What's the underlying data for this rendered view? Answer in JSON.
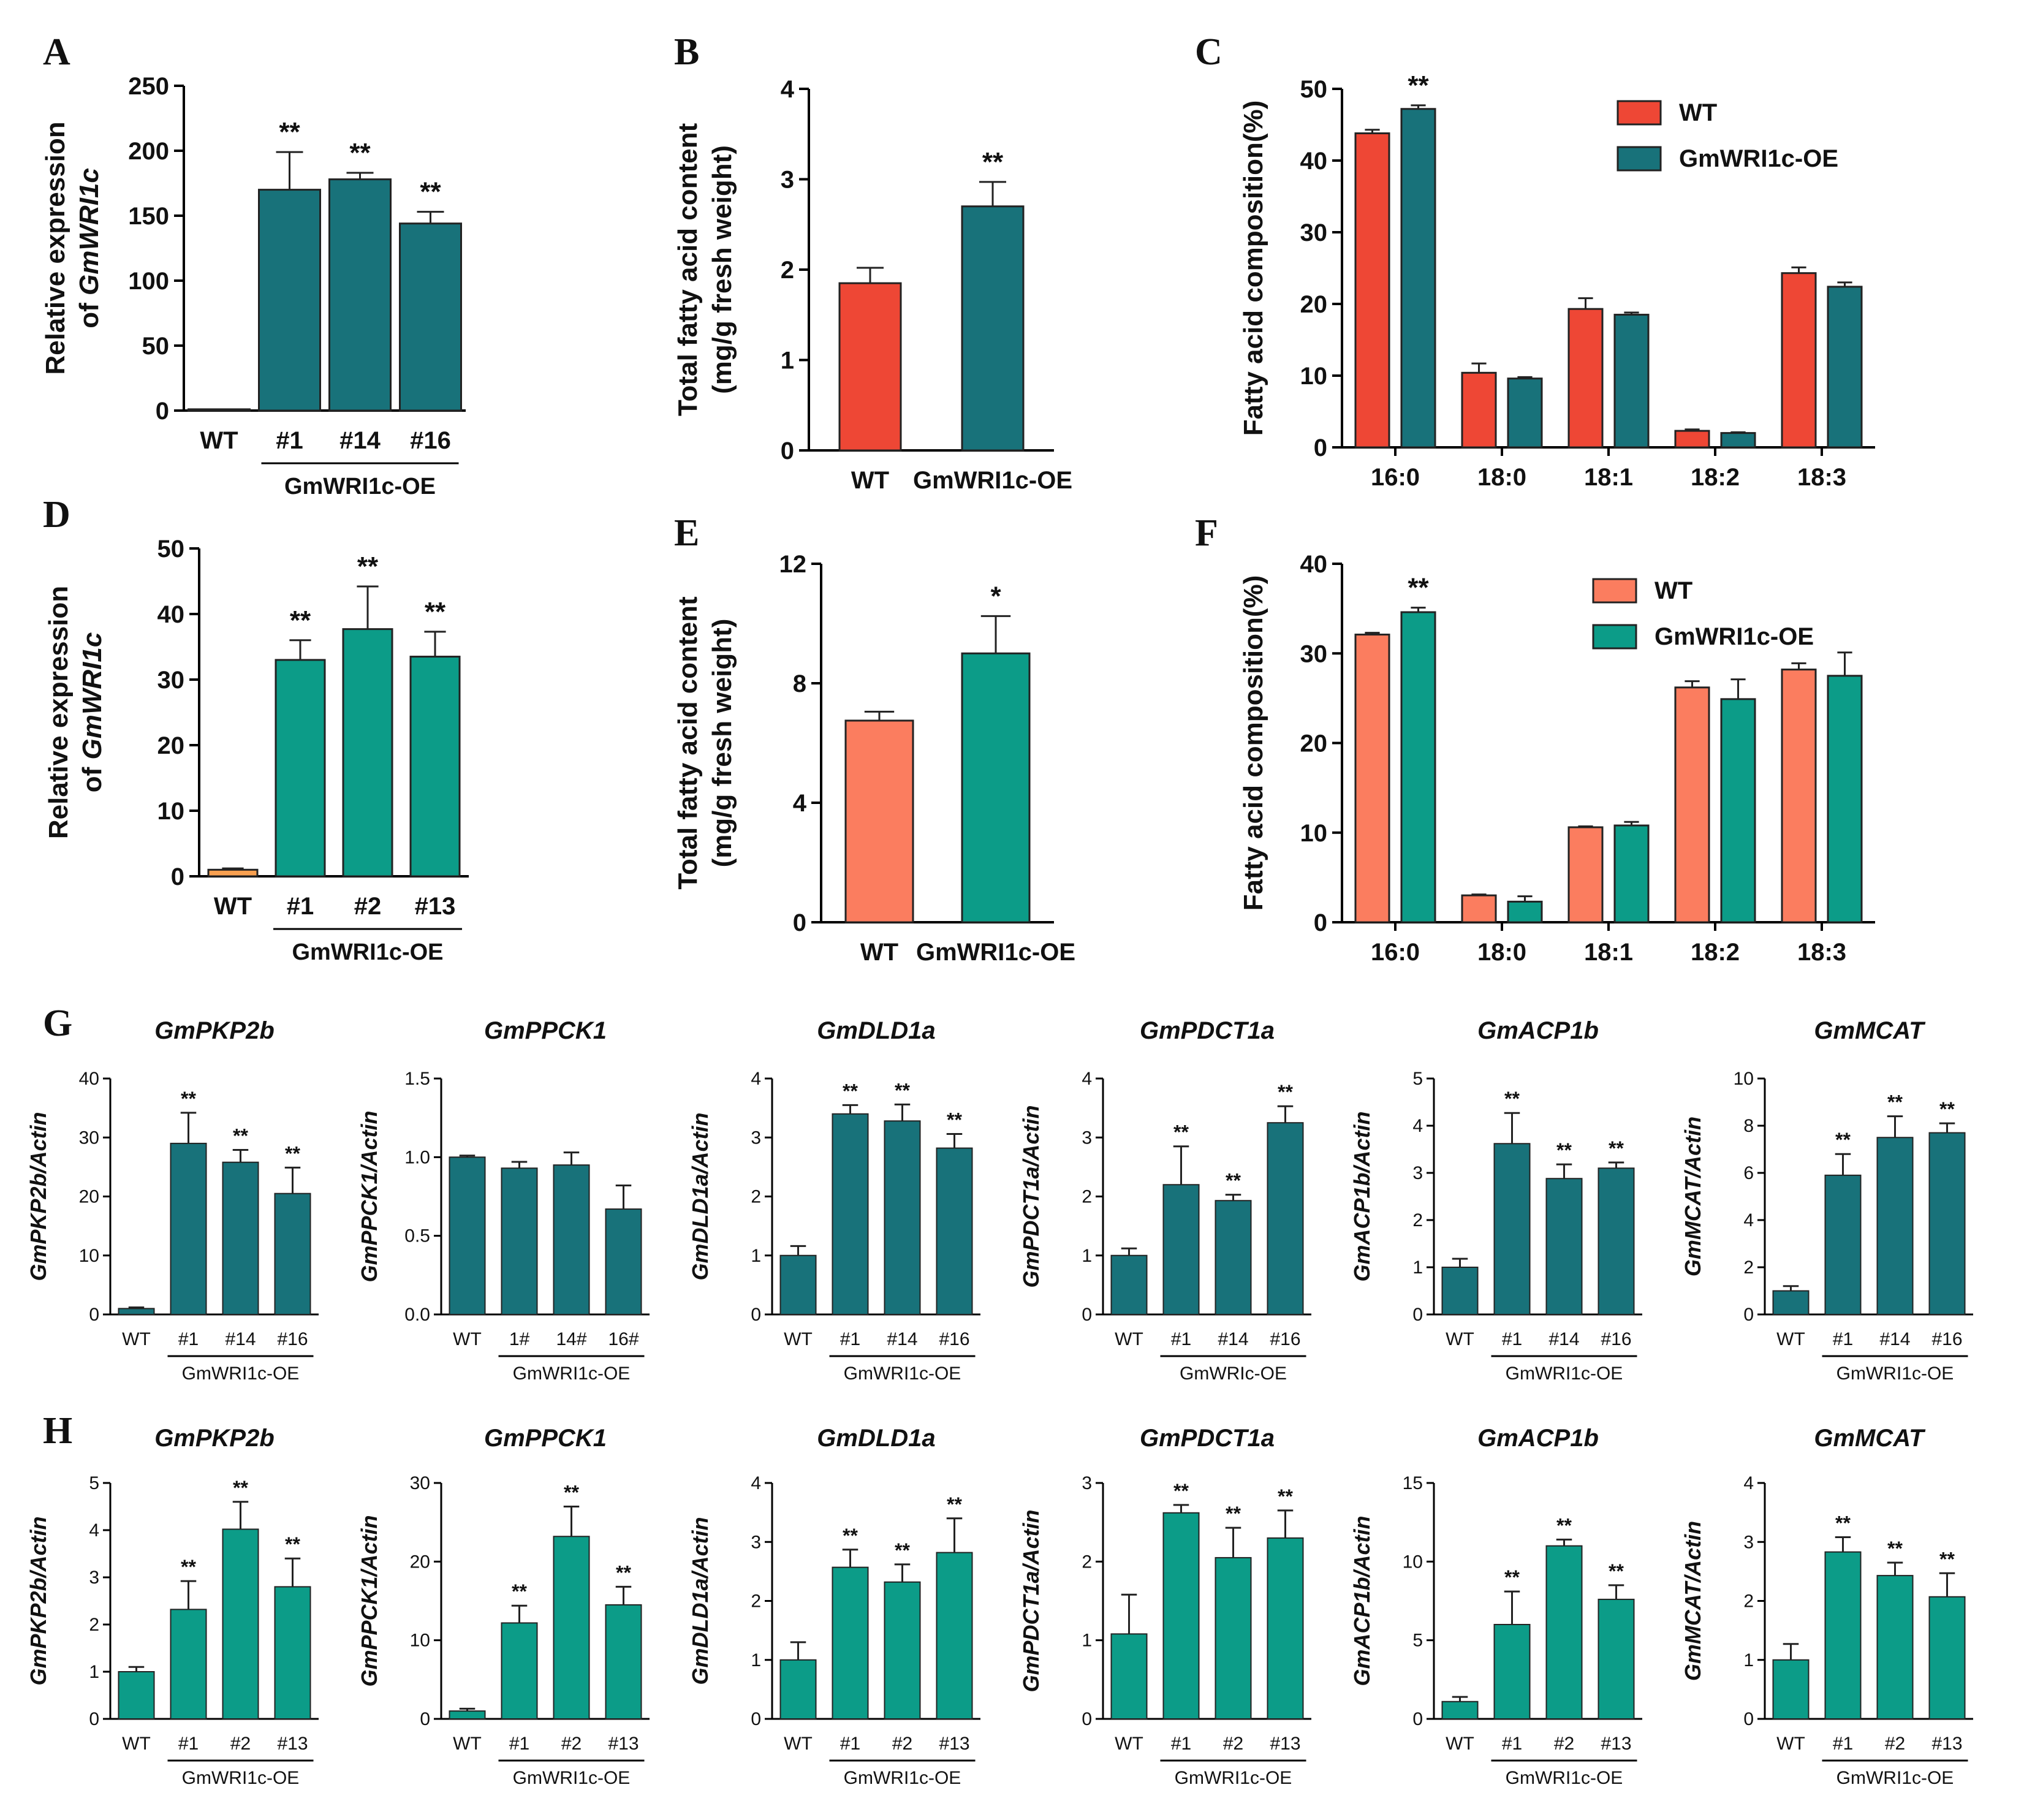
{
  "colors": {
    "red": "#ee4735",
    "dark_teal": "#18727a",
    "salmon": "#fb7d5f",
    "green_teal": "#0c9c88",
    "orange_wt": "#f8a050",
    "axis": "#000000"
  },
  "chart_data": [
    {
      "id": "A",
      "type": "bar",
      "panel": "A",
      "ylabel": [
        "Relative expression",
        "of ",
        "GmWRI1c"
      ],
      "ylim": [
        0,
        250
      ],
      "yticks": [
        0,
        50,
        100,
        150,
        200,
        250
      ],
      "categories": [
        "WT",
        "#1",
        "#14",
        "#16"
      ],
      "values": [
        1,
        170,
        178,
        144
      ],
      "errors": [
        0,
        29,
        5,
        9
      ],
      "sig": [
        "",
        "**",
        "**",
        "**"
      ],
      "colors": [
        "#18727a",
        "#18727a",
        "#18727a",
        "#18727a"
      ],
      "group_label": "GmWRI1c-OE"
    },
    {
      "id": "B",
      "type": "bar",
      "panel": "B",
      "ylabel": [
        "Total fatty acid content",
        "(mg/g fresh weight)"
      ],
      "ylim": [
        0,
        4
      ],
      "yticks": [
        0,
        1,
        2,
        3,
        4
      ],
      "categories": [
        "WT",
        "GmWRI1c-OE"
      ],
      "values": [
        1.85,
        2.7
      ],
      "errors": [
        0.17,
        0.27
      ],
      "sig": [
        "",
        "**"
      ],
      "colors": [
        "#ee4735",
        "#18727a"
      ]
    },
    {
      "id": "C",
      "type": "bar",
      "panel": "C",
      "ylabel": [
        "Fatty acid composition(%)"
      ],
      "ylim": [
        0,
        50
      ],
      "yticks": [
        0,
        10,
        20,
        30,
        40,
        50
      ],
      "categories": [
        "16:0",
        "18:0",
        "18:1",
        "18:2",
        "18:3"
      ],
      "series": [
        {
          "name": "WT",
          "color": "#ee4735",
          "values": [
            43.8,
            10.4,
            19.3,
            2.3,
            24.3
          ],
          "errors": [
            0.5,
            1.3,
            1.5,
            0.2,
            0.8
          ]
        },
        {
          "name": "GmWRI1c-OE",
          "color": "#18727a",
          "values": [
            47.2,
            9.6,
            18.5,
            2.0,
            22.4
          ],
          "errors": [
            0.5,
            0.2,
            0.3,
            0.1,
            0.6
          ]
        }
      ],
      "sig": [
        "**",
        "",
        "",
        "",
        ""
      ],
      "legend": "top-right"
    },
    {
      "id": "D",
      "type": "bar",
      "panel": "D",
      "ylabel": [
        "Relative expression",
        "of ",
        "GmWRI1c"
      ],
      "ylim": [
        0,
        50
      ],
      "yticks": [
        0,
        10,
        20,
        30,
        40,
        50
      ],
      "categories": [
        "WT",
        "#1",
        "#2",
        "#13"
      ],
      "values": [
        1,
        33,
        37.7,
        33.5
      ],
      "errors": [
        0.2,
        3,
        6.5,
        3.8
      ],
      "sig": [
        "",
        "**",
        "**",
        "**"
      ],
      "colors": [
        "#f8a050",
        "#0c9c88",
        "#0c9c88",
        "#0c9c88"
      ],
      "group_label": "GmWRI1c-OE"
    },
    {
      "id": "E",
      "type": "bar",
      "panel": "E",
      "ylabel": [
        "Total fatty acid content",
        "(mg/g fresh weight)"
      ],
      "ylim": [
        0,
        12
      ],
      "yticks": [
        0,
        4,
        8,
        12
      ],
      "categories": [
        "WT",
        "GmWRI1c-OE"
      ],
      "values": [
        6.75,
        9.0
      ],
      "errors": [
        0.3,
        1.25
      ],
      "sig": [
        "",
        "*"
      ],
      "colors": [
        "#fb7d5f",
        "#0c9c88"
      ]
    },
    {
      "id": "F",
      "type": "bar",
      "panel": "F",
      "ylabel": [
        "Fatty acid composition(%)"
      ],
      "ylim": [
        0,
        40
      ],
      "yticks": [
        0,
        10,
        20,
        30,
        40
      ],
      "categories": [
        "16:0",
        "18:0",
        "18:1",
        "18:2",
        "18:3"
      ],
      "series": [
        {
          "name": "WT",
          "color": "#fb7d5f",
          "values": [
            32.1,
            3.0,
            10.6,
            26.2,
            28.2
          ],
          "errors": [
            0.2,
            0.1,
            0.1,
            0.7,
            0.7
          ]
        },
        {
          "name": "GmWRI1c-OE",
          "color": "#0c9c88",
          "values": [
            34.6,
            2.3,
            10.8,
            24.9,
            27.5
          ],
          "errors": [
            0.5,
            0.6,
            0.4,
            2.2,
            2.6
          ]
        }
      ],
      "sig": [
        "**",
        "",
        "",
        "",
        ""
      ],
      "legend": "top-right"
    },
    {
      "id": "G1",
      "type": "bar",
      "panel": "G",
      "title": "GmPKP2b",
      "ylabel": [
        "GmPKP2b",
        "/Actin"
      ],
      "ylim": [
        0,
        40
      ],
      "yticks": [
        0,
        10,
        20,
        30,
        40
      ],
      "categories": [
        "WT",
        "#1",
        "#14",
        "#16"
      ],
      "values": [
        1,
        29,
        25.8,
        20.5
      ],
      "errors": [
        0.2,
        5.2,
        2.1,
        4.4
      ],
      "sig": [
        "",
        "**",
        "**",
        "**"
      ],
      "colors": [
        "#18727a",
        "#18727a",
        "#18727a",
        "#18727a"
      ],
      "group_label": "GmWRI1c-OE"
    },
    {
      "id": "G2",
      "type": "bar",
      "title": "GmPPCK1",
      "ylabel": [
        "GmPPCK1",
        "/Actin"
      ],
      "ylim": [
        0,
        1.5
      ],
      "yticks": [
        "0.0",
        "0.5",
        "1.0",
        "1.5"
      ],
      "categories": [
        "WT",
        "1#",
        "14#",
        "16#"
      ],
      "values": [
        1.0,
        0.93,
        0.95,
        0.67
      ],
      "errors": [
        0.01,
        0.04,
        0.08,
        0.15
      ],
      "sig": [
        "",
        "",
        "",
        ""
      ],
      "colors": [
        "#18727a",
        "#18727a",
        "#18727a",
        "#18727a"
      ],
      "group_label": "GmWRI1c-OE"
    },
    {
      "id": "G3",
      "type": "bar",
      "title": "GmDLD1a",
      "ylabel": [
        "GmDLD1a",
        "/Actin"
      ],
      "ylim": [
        0,
        4
      ],
      "yticks": [
        0,
        1,
        2,
        3,
        4
      ],
      "categories": [
        "WT",
        "#1",
        "#14",
        "#16"
      ],
      "values": [
        1.0,
        3.4,
        3.28,
        2.82
      ],
      "errors": [
        0.16,
        0.15,
        0.28,
        0.24
      ],
      "sig": [
        "",
        "**",
        "**",
        "**"
      ],
      "colors": [
        "#18727a",
        "#18727a",
        "#18727a",
        "#18727a"
      ],
      "group_label": "GmWRI1c-OE"
    },
    {
      "id": "G4",
      "type": "bar",
      "title": "GmPDCT1a",
      "ylabel": [
        "GmPDCT1a",
        "/Actin"
      ],
      "ylim": [
        0,
        4
      ],
      "yticks": [
        0,
        1,
        2,
        3,
        4
      ],
      "categories": [
        "WT",
        "#1",
        "#14",
        "#16"
      ],
      "values": [
        1.0,
        2.2,
        1.93,
        3.25
      ],
      "errors": [
        0.12,
        0.65,
        0.1,
        0.28
      ],
      "sig": [
        "",
        "**",
        "**",
        "**"
      ],
      "colors": [
        "#18727a",
        "#18727a",
        "#18727a",
        "#18727a"
      ],
      "group_label": "GmWRIc-OE"
    },
    {
      "id": "G5",
      "type": "bar",
      "title": "GmACP1b",
      "ylabel": [
        "GmACP1b",
        "/Actin"
      ],
      "ylim": [
        0,
        5
      ],
      "yticks": [
        0,
        1,
        2,
        3,
        4,
        5
      ],
      "categories": [
        "WT",
        "#1",
        "#14",
        "#16"
      ],
      "values": [
        1.0,
        3.62,
        2.88,
        3.1
      ],
      "errors": [
        0.18,
        0.65,
        0.3,
        0.12
      ],
      "sig": [
        "",
        "**",
        "**",
        "**"
      ],
      "colors": [
        "#18727a",
        "#18727a",
        "#18727a",
        "#18727a"
      ],
      "group_label": "GmWRI1c-OE"
    },
    {
      "id": "G6",
      "type": "bar",
      "title": "GmMCAT",
      "ylabel": [
        "GmMCAT",
        "/Actin"
      ],
      "ylim": [
        0,
        10
      ],
      "yticks": [
        0,
        2,
        4,
        6,
        8,
        10
      ],
      "categories": [
        "WT",
        "#1",
        "#14",
        "#16"
      ],
      "values": [
        1.0,
        5.9,
        7.5,
        7.7
      ],
      "errors": [
        0.2,
        0.9,
        0.9,
        0.4
      ],
      "sig": [
        "",
        "**",
        "**",
        "**"
      ],
      "colors": [
        "#18727a",
        "#18727a",
        "#18727a",
        "#18727a"
      ],
      "group_label": "GmWRI1c-OE"
    },
    {
      "id": "H1",
      "type": "bar",
      "panel": "H",
      "title": "GmPKP2b",
      "ylabel": [
        "GmPKP2b",
        "/Actin"
      ],
      "ylim": [
        0,
        5
      ],
      "yticks": [
        0,
        1,
        2,
        3,
        4,
        5
      ],
      "categories": [
        "WT",
        "#1",
        "#2",
        "#13"
      ],
      "values": [
        1.0,
        2.32,
        4.02,
        2.8
      ],
      "errors": [
        0.1,
        0.6,
        0.58,
        0.6
      ],
      "sig": [
        "",
        "**",
        "**",
        "**"
      ],
      "colors": [
        "#0c9c88",
        "#0c9c88",
        "#0c9c88",
        "#0c9c88"
      ],
      "group_label": "GmWRI1c-OE"
    },
    {
      "id": "H2",
      "type": "bar",
      "title": "GmPPCK1",
      "ylabel": [
        "GmPPCK1",
        "/Actin"
      ],
      "ylim": [
        0,
        30
      ],
      "yticks": [
        0,
        10,
        20,
        30
      ],
      "categories": [
        "WT",
        "#1",
        "#2",
        "#13"
      ],
      "values": [
        1.0,
        12.2,
        23.2,
        14.5
      ],
      "errors": [
        0.3,
        2.2,
        3.8,
        2.3
      ],
      "sig": [
        "",
        "**",
        "**",
        "**"
      ],
      "colors": [
        "#0c9c88",
        "#0c9c88",
        "#0c9c88",
        "#0c9c88"
      ],
      "group_label": "GmWRI1c-OE"
    },
    {
      "id": "H3",
      "type": "bar",
      "title": "GmDLD1a",
      "ylabel": [
        "GmDLD1a",
        "/Actin"
      ],
      "ylim": [
        0,
        4
      ],
      "yticks": [
        0,
        1,
        2,
        3,
        4
      ],
      "categories": [
        "WT",
        "#1",
        "#2",
        "#13"
      ],
      "values": [
        1.0,
        2.57,
        2.32,
        2.82
      ],
      "errors": [
        0.3,
        0.3,
        0.3,
        0.58
      ],
      "sig": [
        "",
        "**",
        "**",
        "**"
      ],
      "colors": [
        "#0c9c88",
        "#0c9c88",
        "#0c9c88",
        "#0c9c88"
      ],
      "group_label": "GmWRI1c-OE"
    },
    {
      "id": "H4",
      "type": "bar",
      "title": "GmPDCT1a",
      "ylabel": [
        "GmPDCT1a",
        "/Actin"
      ],
      "ylim": [
        0,
        3
      ],
      "yticks": [
        0,
        1,
        2,
        3
      ],
      "categories": [
        "WT",
        "#1",
        "#2",
        "#13"
      ],
      "values": [
        1.08,
        2.62,
        2.05,
        2.3
      ],
      "errors": [
        0.5,
        0.1,
        0.38,
        0.35
      ],
      "sig": [
        "",
        "**",
        "**",
        "**"
      ],
      "colors": [
        "#0c9c88",
        "#0c9c88",
        "#0c9c88",
        "#0c9c88"
      ],
      "group_label": "GmWRI1c-OE"
    },
    {
      "id": "H5",
      "type": "bar",
      "title": "GmACP1b",
      "ylabel": [
        "GmACP1b",
        "/Actin"
      ],
      "ylim": [
        0,
        15
      ],
      "yticks": [
        0,
        5,
        10,
        15
      ],
      "categories": [
        "WT",
        "#1",
        "#2",
        "#13"
      ],
      "values": [
        1.1,
        6.0,
        11.0,
        7.6
      ],
      "errors": [
        0.3,
        2.1,
        0.4,
        0.9
      ],
      "sig": [
        "",
        "**",
        "**",
        "**"
      ],
      "colors": [
        "#0c9c88",
        "#0c9c88",
        "#0c9c88",
        "#0c9c88"
      ],
      "group_label": "GmWRI1c-OE"
    },
    {
      "id": "H6",
      "type": "bar",
      "title": "GmMCAT",
      "ylabel": [
        "GmMCAT",
        "/Actin"
      ],
      "ylim": [
        0,
        4
      ],
      "yticks": [
        0,
        1,
        2,
        3,
        4
      ],
      "categories": [
        "WT",
        "#1",
        "#2",
        "#13"
      ],
      "values": [
        1.0,
        2.83,
        2.43,
        2.07
      ],
      "errors": [
        0.27,
        0.25,
        0.22,
        0.4
      ],
      "sig": [
        "",
        "**",
        "**",
        "**"
      ],
      "colors": [
        "#0c9c88",
        "#0c9c88",
        "#0c9c88",
        "#0c9c88"
      ],
      "group_label": "GmWRI1c-OE"
    }
  ]
}
